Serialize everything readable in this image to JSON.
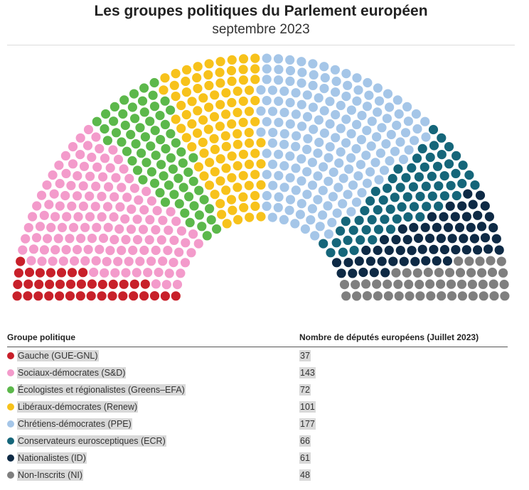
{
  "header": {
    "title": "Les groupes politiques du Parlement européen",
    "subtitle": "septembre 2023"
  },
  "table": {
    "col_group": "Groupe politique",
    "col_count": "Nombre de députés européens (Juillet 2023)"
  },
  "chart_data": {
    "type": "parliament",
    "title": "Les groupes politiques du Parlement européen",
    "subtitle": "septembre 2023",
    "total_seats": 705,
    "parties": [
      {
        "name": "Gauche (GUE-GNL)",
        "seats": 37,
        "color": "#c8202a"
      },
      {
        "name": "Sociaux-démocrates (S&D)",
        "seats": 143,
        "color": "#f39bcb"
      },
      {
        "name": "Écologistes et régionalistes (Greens–EFA)",
        "seats": 72,
        "color": "#5cb84b"
      },
      {
        "name": "Libéraux-démocrates (Renew)",
        "seats": 101,
        "color": "#f7c21b"
      },
      {
        "name": "Chrétiens-démocrates (PPE)",
        "seats": 177,
        "color": "#a5c6e8"
      },
      {
        "name": "Conservateurs eurosceptiques (ECR)",
        "seats": 66,
        "color": "#15667a"
      },
      {
        "name": "Nationalistes (ID)",
        "seats": 61,
        "color": "#0e2a45"
      },
      {
        "name": "Non-Inscrits (NI)",
        "seats": 48,
        "color": "#7f7f7f"
      }
    ]
  }
}
